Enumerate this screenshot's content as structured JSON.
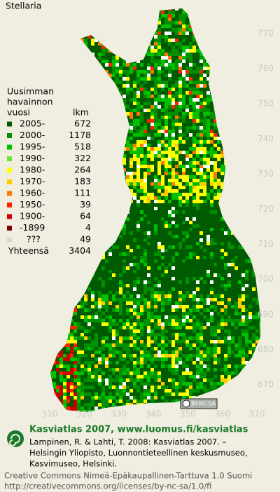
{
  "title": "Stellaria",
  "legend": {
    "heading": [
      "Uusimman",
      "havainnon",
      "vuosi"
    ],
    "count_heading": "lkm",
    "rows": [
      {
        "label": "2005-",
        "count": 672,
        "color": "#005a00"
      },
      {
        "label": "2000-",
        "count": 1178,
        "color": "#009000"
      },
      {
        "label": "1995-",
        "count": 518,
        "color": "#00c000"
      },
      {
        "label": "1990-",
        "count": 322,
        "color": "#66e633"
      },
      {
        "label": "1980-",
        "count": 264,
        "color": "#ffff00"
      },
      {
        "label": "1970-",
        "count": 183,
        "color": "#ffcc00"
      },
      {
        "label": "1960-",
        "count": 111,
        "color": "#ff7700"
      },
      {
        "label": "1950-",
        "count": 39,
        "color": "#ff2200"
      },
      {
        "label": "1900-",
        "count": 64,
        "color": "#cc0000"
      },
      {
        "label": "-1899",
        "count": 4,
        "color": "#800000"
      },
      {
        "label": "???",
        "count": 49,
        "color": "#d8d8d8"
      }
    ],
    "total_label": "Yhteensä",
    "total": 3404
  },
  "axes": {
    "ylim": [
      670,
      770
    ],
    "yticks": [
      670,
      680,
      690,
      700,
      710,
      720,
      730,
      740,
      750,
      760,
      770
    ],
    "xlim": [
      310,
      370
    ],
    "xticks": [
      310,
      320,
      330,
      340,
      350,
      360,
      370
    ]
  },
  "license_badge": "BY-NC-SA",
  "footer": {
    "title": "Kasviatlas 2007, www.luomus.fi/kasviatlas",
    "citation": [
      "Lampinen, R. & Lahti, T. 2008: Kasviatlas 2007. –",
      "Helsingin Yliopisto, Luonnontieteellinen keskusmuseo,",
      "Kasvimuseo, Helsinki."
    ],
    "license": [
      "Creative Commons Nimeä-Epäkaupallinen-Tarttuva 1.0 Suomi",
      "http://creativecommons.org/licenses/by-nc-sa/1.0/fi"
    ]
  }
}
